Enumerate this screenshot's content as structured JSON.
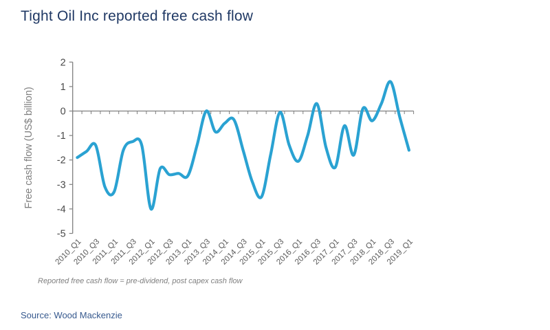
{
  "title": "Tight Oil Inc reported free cash flow",
  "footnote": "Reported free cash flow = pre-dividend, post capex cash flow",
  "source": "Source: Wood Mackenzie",
  "colors": {
    "title": "#1F3864",
    "line": "#2AA2D2",
    "axis": "#7F7F7F",
    "y_tick_label": "#4A4A4A",
    "x_tick_label": "#595959",
    "axis_title": "#7F7F7F",
    "footnote": "#7F7F7F",
    "source": "#36598E",
    "background": "#FFFFFF"
  },
  "chart_data": {
    "type": "line",
    "title": "Tight Oil Inc reported free cash flow",
    "xlabel": "",
    "ylabel": "Free cash flow (US$ billion)",
    "ylim": [
      -5,
      2
    ],
    "y_ticks": [
      2,
      1,
      0,
      -1,
      -2,
      -3,
      -4,
      -5
    ],
    "grid": false,
    "legend": "none",
    "smoothed": true,
    "zero_axis_line": true,
    "x": [
      "2010_Q1",
      "2010_Q2",
      "2010_Q3",
      "2010_Q4",
      "2011_Q1",
      "2011_Q2",
      "2011_Q3",
      "2011_Q4",
      "2012_Q1",
      "2012_Q2",
      "2012_Q3",
      "2012_Q4",
      "2013_Q1",
      "2013_Q2",
      "2013_Q3",
      "2013_Q4",
      "2014_Q1",
      "2014_Q2",
      "2014_Q3",
      "2014_Q4",
      "2015_Q1",
      "2015_Q2",
      "2015_Q3",
      "2015_Q4",
      "2016_Q1",
      "2016_Q2",
      "2016_Q3",
      "2016_Q4",
      "2017_Q1",
      "2017_Q2",
      "2017_Q3",
      "2017_Q4",
      "2018_Q1",
      "2018_Q2",
      "2018_Q3",
      "2018_Q4",
      "2019_Q1"
    ],
    "x_tick_labels_shown": [
      "2010_Q1",
      "2010_Q3",
      "2011_Q1",
      "2011_Q3",
      "2012_Q1",
      "2012_Q3",
      "2013_Q1",
      "2013_Q3",
      "2014_Q1",
      "2014_Q3",
      "2015_Q1",
      "2015_Q3",
      "2016_Q1",
      "2016_Q3",
      "2017_Q1",
      "2017_Q3",
      "2018_Q1",
      "2018_Q3",
      "2019_Q1"
    ],
    "x_label_every": 2,
    "series": [
      {
        "name": "Reported free cash flow",
        "values": [
          -1.9,
          -1.65,
          -1.4,
          -3.1,
          -3.3,
          -1.6,
          -1.25,
          -1.4,
          -4.0,
          -2.35,
          -2.6,
          -2.55,
          -2.65,
          -1.4,
          0.0,
          -0.85,
          -0.5,
          -0.35,
          -1.6,
          -2.9,
          -3.5,
          -1.75,
          -0.05,
          -1.4,
          -2.05,
          -1.0,
          0.3,
          -1.5,
          -2.3,
          -0.6,
          -1.8,
          0.1,
          -0.4,
          0.3,
          1.2,
          -0.25,
          -1.6
        ]
      }
    ]
  }
}
